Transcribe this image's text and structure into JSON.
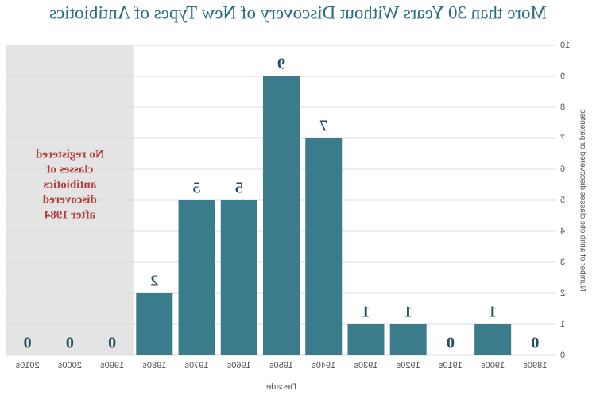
{
  "chart_data": {
    "type": "bar",
    "title": "More than 30 Years Without Discovery of New Types of Antibiotics",
    "x_label": "Decade",
    "y_label": "Number of antibiotic classes discovered or patented",
    "categories": [
      "1890s",
      "1900s",
      "1910s",
      "1920s",
      "1930s",
      "1940s",
      "1950s",
      "1960s",
      "1970s",
      "1980s",
      "1990s",
      "2000s",
      "2010s"
    ],
    "values": [
      0,
      1,
      0,
      1,
      1,
      7,
      9,
      5,
      5,
      2,
      0,
      0,
      0
    ],
    "color": "#3a7b8c",
    "ylim": [
      0,
      10
    ],
    "yticks": [
      0,
      1,
      2,
      3,
      4,
      5,
      6,
      7,
      8,
      9,
      10
    ],
    "grid": true,
    "annotation": [
      "No registered",
      "classes of",
      "antibiotics",
      "discovered",
      "after 1984"
    ]
  }
}
